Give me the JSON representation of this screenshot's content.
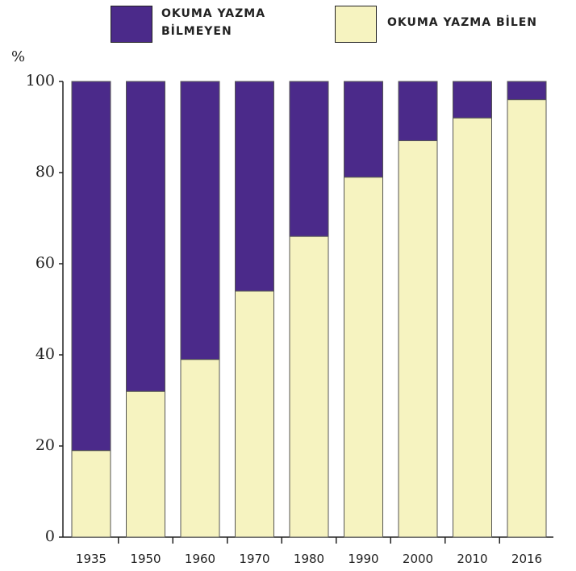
{
  "chart_data": {
    "type": "stacked_bar",
    "y_label": "%",
    "categories": [
      "1935",
      "1950",
      "1960",
      "1970",
      "1980",
      "1990",
      "2000",
      "2010",
      "2016"
    ],
    "series": [
      {
        "name": "OKUMA YAZMA BİLEN",
        "color": "#f6f3c0",
        "values": [
          19,
          32,
          39,
          54,
          66,
          79,
          87,
          92,
          96
        ]
      },
      {
        "name": "OKUMA YAZMA BİLMEYEN",
        "color": "#4b2a8a",
        "values": [
          81,
          68,
          61,
          46,
          34,
          21,
          13,
          8,
          4
        ]
      }
    ],
    "ylim": [
      0,
      100
    ],
    "yticks": [
      0,
      20,
      40,
      60,
      80,
      100
    ],
    "grid": false
  }
}
